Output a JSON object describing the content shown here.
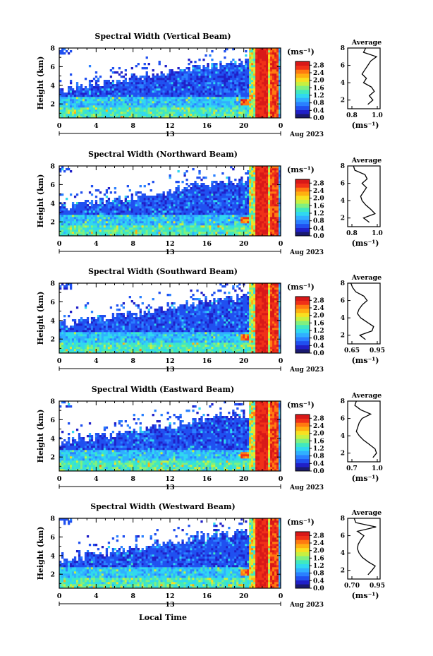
{
  "units_label": "(ms⁻¹)",
  "xlabel": "Local Time",
  "ylabel": "Height (km)",
  "date_label": "Aug 2023",
  "day_label": "13",
  "avg_title": "Average",
  "avg_units": "(ms⁻¹)",
  "colorscale": [
    "#1a1a70",
    "#2020c8",
    "#2050f0",
    "#2a80ff",
    "#30b0ff",
    "#30d8f0",
    "#40e8c0",
    "#80f080",
    "#c8f040",
    "#f8e020",
    "#ffb010",
    "#ff7a10",
    "#f03018",
    "#d81818"
  ],
  "chart_data": [
    {
      "type": "heatmap",
      "title": "Spectral Width (Vertical Beam)",
      "x_ticks": [
        "0",
        "4",
        "8",
        "12",
        "16",
        "20",
        "0"
      ],
      "y_ticks": [
        "2",
        "4",
        "6",
        "8"
      ],
      "colorbar_ticks": [
        "0.0",
        "0.4",
        "0.8",
        "1.2",
        "1.6",
        "2.0",
        "2.4",
        "2.8"
      ],
      "avg_x_ticks": [
        "0.8",
        "1.0"
      ],
      "avg_y_ticks": [
        "2",
        "4",
        "6",
        "8"
      ],
      "xlim": [
        0,
        24
      ],
      "ylim": [
        0.5,
        8
      ],
      "clim": [
        0,
        3
      ],
      "avg_xlim": [
        0.6,
        1.05
      ],
      "avg_profile": [
        [
          1.5,
          0.88
        ],
        [
          2,
          0.95
        ],
        [
          2.5,
          0.9
        ],
        [
          3,
          0.97
        ],
        [
          3.5,
          0.93
        ],
        [
          4,
          0.82
        ],
        [
          4.5,
          0.86
        ],
        [
          5,
          0.8
        ],
        [
          5.5,
          0.84
        ],
        [
          6,
          0.88
        ],
        [
          6.5,
          0.92
        ],
        [
          7,
          1.0
        ],
        [
          7.5,
          0.82
        ],
        [
          8,
          0.85
        ]
      ]
    },
    {
      "type": "heatmap",
      "title": "Spectral Width (Northward Beam)",
      "x_ticks": [
        "0",
        "4",
        "8",
        "12",
        "16",
        "20",
        "0"
      ],
      "y_ticks": [
        "2",
        "4",
        "6",
        "8"
      ],
      "colorbar_ticks": [
        "0.0",
        "0.4",
        "0.8",
        "1.2",
        "1.6",
        "2.0",
        "2.4",
        "2.8"
      ],
      "avg_x_ticks": [
        "0.8",
        "1.0"
      ],
      "avg_y_ticks": [
        "2",
        "4",
        "6",
        "8"
      ],
      "xlim": [
        0,
        24
      ],
      "ylim": [
        0.5,
        8
      ],
      "clim": [
        0,
        3
      ],
      "avg_xlim": [
        0.6,
        1.05
      ],
      "avg_profile": [
        [
          1.5,
          0.9
        ],
        [
          2,
          0.82
        ],
        [
          2.5,
          0.98
        ],
        [
          3,
          0.92
        ],
        [
          3.5,
          0.85
        ],
        [
          4,
          0.8
        ],
        [
          4.5,
          0.78
        ],
        [
          5,
          0.82
        ],
        [
          5.5,
          0.86
        ],
        [
          6,
          0.8
        ],
        [
          6.5,
          0.87
        ],
        [
          7,
          0.84
        ],
        [
          7.5,
          0.7
        ],
        [
          8,
          0.68
        ]
      ]
    },
    {
      "type": "heatmap",
      "title": "Spectral Width (Southward Beam)",
      "x_ticks": [
        "0",
        "4",
        "8",
        "12",
        "16",
        "20",
        "0"
      ],
      "y_ticks": [
        "2",
        "4",
        "6",
        "8"
      ],
      "colorbar_ticks": [
        "0.0",
        "0.4",
        "0.8",
        "1.2",
        "1.6",
        "2.0",
        "2.4",
        "2.8"
      ],
      "avg_x_ticks": [
        "0.65",
        "0.95"
      ],
      "avg_y_ticks": [
        "2",
        "4",
        "6",
        "8"
      ],
      "xlim": [
        0,
        24
      ],
      "ylim": [
        0.5,
        8
      ],
      "clim": [
        0,
        3
      ],
      "avg_xlim": [
        0.6,
        1.0
      ],
      "avg_profile": [
        [
          1.5,
          0.82
        ],
        [
          2,
          0.75
        ],
        [
          2.5,
          0.9
        ],
        [
          3,
          0.92
        ],
        [
          3.5,
          0.84
        ],
        [
          4,
          0.76
        ],
        [
          4.5,
          0.72
        ],
        [
          5,
          0.74
        ],
        [
          5.5,
          0.78
        ],
        [
          6,
          0.84
        ],
        [
          6.5,
          0.8
        ],
        [
          7,
          0.7
        ],
        [
          7.5,
          0.66
        ],
        [
          8,
          0.64
        ]
      ]
    },
    {
      "type": "heatmap",
      "title": "Spectral Width (Eastward Beam)",
      "x_ticks": [
        "0",
        "4",
        "8",
        "12",
        "16",
        "20",
        "0"
      ],
      "y_ticks": [
        "2",
        "4",
        "6",
        "8"
      ],
      "colorbar_ticks": [
        "0.0",
        "0.4",
        "0.8",
        "1.2",
        "1.6",
        "2.0",
        "2.4",
        "2.8"
      ],
      "avg_x_ticks": [
        "0.7",
        "1.0"
      ],
      "avg_y_ticks": [
        "2",
        "4",
        "6",
        "8"
      ],
      "xlim": [
        0,
        24
      ],
      "ylim": [
        0.5,
        8
      ],
      "clim": [
        0,
        3
      ],
      "avg_xlim": [
        0.6,
        1.05
      ],
      "avg_profile": [
        [
          1.5,
          0.95
        ],
        [
          2,
          1.0
        ],
        [
          2.5,
          0.98
        ],
        [
          3,
          0.9
        ],
        [
          3.5,
          0.82
        ],
        [
          4,
          0.76
        ],
        [
          4.5,
          0.72
        ],
        [
          5,
          0.74
        ],
        [
          5.5,
          0.76
        ],
        [
          6,
          0.8
        ],
        [
          6.5,
          0.92
        ],
        [
          7,
          0.78
        ],
        [
          7.5,
          0.7
        ],
        [
          8,
          0.72
        ]
      ]
    },
    {
      "type": "heatmap",
      "title": "Spectral Width (Westward Beam)",
      "x_ticks": [
        "0",
        "4",
        "8",
        "12",
        "16",
        "20",
        "0"
      ],
      "y_ticks": [
        "2",
        "4",
        "6",
        "8"
      ],
      "colorbar_ticks": [
        "0.0",
        "0.4",
        "0.8",
        "1.2",
        "1.6",
        "2.0",
        "2.4",
        "2.8"
      ],
      "avg_x_ticks": [
        "0.70",
        "0.95"
      ],
      "avg_y_ticks": [
        "2",
        "4",
        "6",
        "8"
      ],
      "xlim": [
        0,
        24
      ],
      "ylim": [
        0.5,
        8
      ],
      "clim": [
        0,
        3
      ],
      "avg_xlim": [
        0.6,
        1.0
      ],
      "avg_profile": [
        [
          1.5,
          0.85
        ],
        [
          2,
          0.9
        ],
        [
          2.5,
          0.94
        ],
        [
          3,
          0.85
        ],
        [
          3.5,
          0.78
        ],
        [
          4,
          0.74
        ],
        [
          4.5,
          0.72
        ],
        [
          5,
          0.73
        ],
        [
          5.5,
          0.76
        ],
        [
          6,
          0.8
        ],
        [
          6.5,
          0.72
        ],
        [
          7,
          0.95
        ],
        [
          7.5,
          0.7
        ],
        [
          8,
          0.68
        ]
      ]
    }
  ]
}
